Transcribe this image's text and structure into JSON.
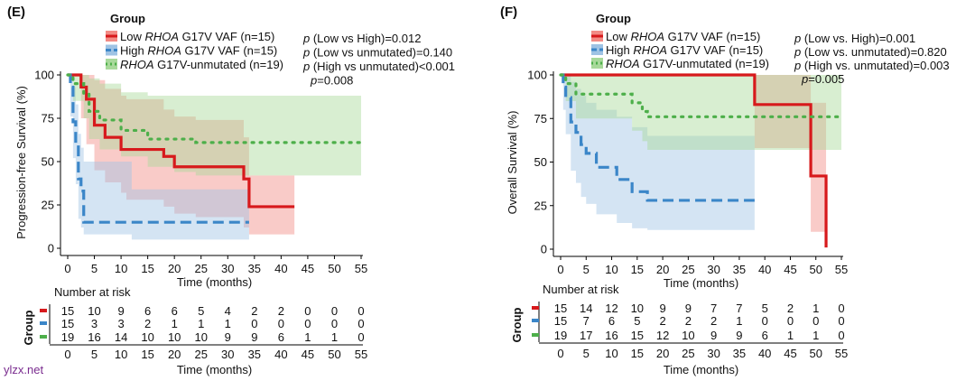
{
  "watermark": "ylzx.net",
  "chart_data": [
    {
      "type": "line",
      "subtype": "kaplan-meier",
      "panel_label": "(E)",
      "title": "",
      "xlabel": "Time (months)",
      "ylabel": "Progression-free Survival (%)",
      "xlim": [
        0,
        55
      ],
      "ylim": [
        0,
        100
      ],
      "x_ticks": [
        "0",
        "5",
        "10",
        "15",
        "20",
        "25",
        "30",
        "35",
        "40",
        "45",
        "50",
        "55"
      ],
      "y_ticks": [
        "0",
        "25",
        "50",
        "75",
        "100"
      ],
      "legend_title": "Group",
      "series": [
        {
          "name_pre": "Low ",
          "name_ital": "RHOA",
          "name_post": " G17V VAF (n=15)",
          "color": "#d7191c",
          "fill": "#f28b85",
          "style": "solid",
          "x": [
            0,
            1.5,
            2.5,
            3.5,
            5,
            7,
            10,
            11,
            15,
            18,
            20,
            24,
            33,
            34,
            42.5
          ],
          "y": [
            100,
            100,
            93,
            86,
            71,
            64,
            57,
            57,
            57,
            53,
            47,
            47,
            40,
            24,
            24
          ],
          "ci_lower": [
            100,
            100,
            75,
            60,
            45,
            38,
            32,
            28,
            28,
            24,
            20,
            18,
            12,
            8,
            8
          ],
          "ci_upper": [
            100,
            100,
            100,
            100,
            97,
            92,
            88,
            86,
            86,
            80,
            76,
            74,
            64,
            42,
            42
          ]
        },
        {
          "name_pre": "High ",
          "name_ital": "RHOA",
          "name_post": " G17V VAF (n=15)",
          "color": "#3b86c8",
          "fill": "#9fc3e4",
          "style": "dashed",
          "x": [
            0,
            0.5,
            1,
            1.5,
            2,
            2.5,
            3,
            11,
            12,
            34
          ],
          "y": [
            100,
            93,
            73,
            60,
            40,
            33,
            15,
            15,
            15,
            15
          ],
          "ci_lower": [
            100,
            76,
            52,
            37,
            17,
            12,
            8,
            8,
            5,
            5
          ],
          "ci_upper": [
            100,
            100,
            93,
            83,
            66,
            58,
            50,
            50,
            34,
            34
          ]
        },
        {
          "name_pre": "",
          "name_ital": "RHOA",
          "name_post": " G17V-unmutated (n=19)",
          "color": "#4daf4a",
          "fill": "#a8d99a",
          "style": "dotted",
          "x": [
            0,
            1,
            3,
            4,
            6,
            10,
            15,
            20,
            24,
            55
          ],
          "y": [
            100,
            95,
            89,
            79,
            74,
            68,
            63,
            63,
            61,
            61
          ],
          "ci_lower": [
            100,
            85,
            75,
            63,
            57,
            53,
            47,
            44,
            42,
            42
          ],
          "ci_upper": [
            100,
            100,
            100,
            98,
            95,
            90,
            88,
            88,
            88,
            88
          ]
        }
      ],
      "pvalues": [
        {
          "p": "p",
          "text": " (Low vs High)=0.012"
        },
        {
          "p": "p",
          "text": " (Low vs unmutated)=0.140"
        },
        {
          "p": "p",
          "text": " (High vs unmutated)<0.001"
        },
        {
          "p": "p",
          "text": "=0.008"
        }
      ],
      "risk_table": {
        "title": "Number at risk",
        "ylabel": "Group",
        "xlabel": "Time (months)",
        "rows": [
          [
            "15",
            "10",
            "9",
            "6",
            "6",
            "5",
            "4",
            "2",
            "2",
            "0",
            "0",
            "0"
          ],
          [
            "15",
            "3",
            "3",
            "2",
            "1",
            "1",
            "1",
            "0",
            "0",
            "0",
            "0",
            "0"
          ],
          [
            "19",
            "16",
            "14",
            "10",
            "10",
            "10",
            "9",
            "9",
            "6",
            "1",
            "1",
            "0"
          ]
        ]
      }
    },
    {
      "type": "line",
      "subtype": "kaplan-meier",
      "panel_label": "(F)",
      "title": "",
      "xlabel": "Time (months)",
      "ylabel": "Overall Survival (%)",
      "xlim": [
        0,
        55
      ],
      "ylim": [
        0,
        100
      ],
      "x_ticks": [
        "0",
        "5",
        "10",
        "15",
        "20",
        "25",
        "30",
        "35",
        "40",
        "45",
        "50",
        "55"
      ],
      "y_ticks": [
        "0",
        "25",
        "50",
        "75",
        "100"
      ],
      "legend_title": "Group",
      "series": [
        {
          "name_pre": "Low ",
          "name_ital": "RHOA",
          "name_post": " G17V VAF (n=15)",
          "color": "#d7191c",
          "fill": "#f28b85",
          "style": "solid",
          "x": [
            0,
            37,
            38,
            47.5,
            49,
            51.5,
            52
          ],
          "y": [
            100,
            100,
            83,
            83,
            42,
            42,
            1
          ],
          "ci_lower": [
            100,
            100,
            58,
            58,
            10,
            10,
            0
          ],
          "ci_upper": [
            100,
            100,
            100,
            100,
            84,
            84,
            84
          ]
        },
        {
          "name_pre": "High ",
          "name_ital": "RHOA",
          "name_post": " G17V VAF (n=15)",
          "color": "#3b86c8",
          "fill": "#9fc3e4",
          "style": "dashed",
          "x": [
            0,
            0.5,
            1,
            2,
            3,
            4,
            5,
            7,
            9,
            11,
            14,
            17,
            18,
            38
          ],
          "y": [
            100,
            93,
            87,
            73,
            67,
            60,
            55,
            47,
            47,
            40,
            33,
            28,
            28,
            28
          ],
          "ci_lower": [
            100,
            80,
            66,
            45,
            38,
            30,
            26,
            20,
            20,
            15,
            12,
            11,
            11,
            11
          ],
          "ci_upper": [
            100,
            100,
            100,
            96,
            92,
            88,
            84,
            80,
            80,
            76,
            70,
            65,
            65,
            65
          ]
        },
        {
          "name_pre": "",
          "name_ital": "RHOA",
          "name_post": " G17V-unmutated (n=19)",
          "color": "#4daf4a",
          "fill": "#a8d99a",
          "style": "dotted",
          "x": [
            0,
            1,
            3,
            10,
            14,
            16,
            17,
            18,
            55
          ],
          "y": [
            100,
            95,
            89,
            89,
            84,
            79,
            76,
            76,
            76
          ],
          "ci_lower": [
            100,
            85,
            75,
            75,
            68,
            62,
            57,
            57,
            57
          ],
          "ci_upper": [
            100,
            100,
            100,
            100,
            100,
            100,
            100,
            100,
            100
          ]
        }
      ],
      "pvalues": [
        {
          "p": "p",
          "text": " (Low vs. High)=0.001"
        },
        {
          "p": "p",
          "text": " (Low vs. unmutated)=0.820"
        },
        {
          "p": "p",
          "text": " (High vs. unmutated)=0.003"
        },
        {
          "p": "p",
          "text": "=0.005"
        }
      ],
      "risk_table": {
        "title": "Number at risk",
        "ylabel": "Group",
        "xlabel": "Time (months)",
        "rows": [
          [
            "15",
            "14",
            "12",
            "10",
            "9",
            "9",
            "7",
            "7",
            "5",
            "2",
            "1",
            "0"
          ],
          [
            "15",
            "7",
            "6",
            "5",
            "2",
            "2",
            "2",
            "1",
            "0",
            "0",
            "0",
            "0"
          ],
          [
            "19",
            "17",
            "16",
            "15",
            "12",
            "10",
            "9",
            "9",
            "6",
            "1",
            "1",
            "0"
          ]
        ]
      }
    }
  ]
}
